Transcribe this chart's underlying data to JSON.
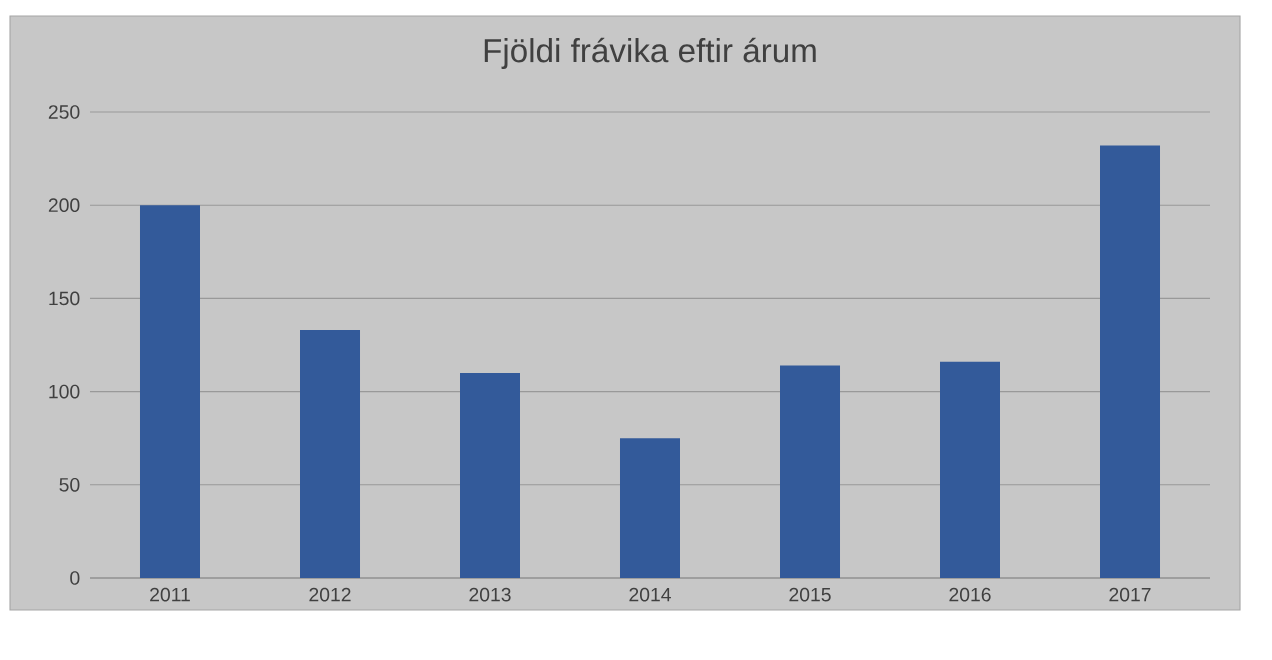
{
  "chart_data": {
    "type": "bar",
    "title": "Fjöldi frávika eftir árum",
    "categories": [
      "2011",
      "2012",
      "2013",
      "2014",
      "2015",
      "2016",
      "2017"
    ],
    "values": [
      200,
      133,
      110,
      75,
      114,
      116,
      232
    ],
    "color": "#335a9a",
    "ylim": [
      0,
      250
    ],
    "yticks": [
      0,
      50,
      100,
      150,
      200,
      250
    ],
    "grid": "y"
  }
}
